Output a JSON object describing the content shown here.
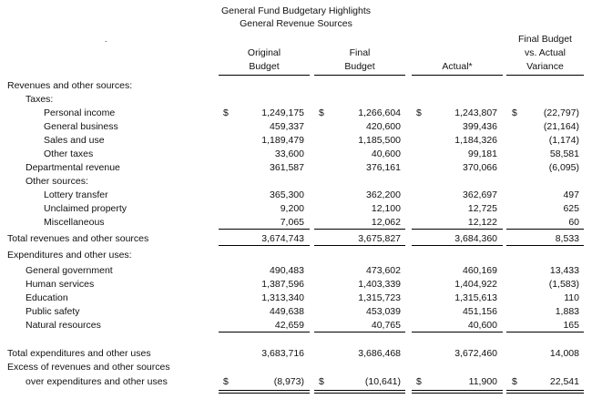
{
  "title": "General Fund Budgetary Highlights",
  "subtitle": "General Revenue Sources",
  "dot": ".",
  "headers": {
    "original": [
      "Original",
      "Budget"
    ],
    "final": [
      "Final",
      "Budget"
    ],
    "actual": [
      "Actual*"
    ],
    "variance": [
      "Final Budget",
      "vs. Actual",
      "Variance"
    ]
  },
  "rows": [
    {
      "label": "Revenues and other sources:",
      "indent": 0
    },
    {
      "label": "Taxes:",
      "indent": 1
    },
    {
      "label": "Personal income",
      "indent": 2,
      "dollar": true,
      "values": [
        "1,249,175",
        "1,266,604",
        "1,243,807",
        "(22,797)"
      ]
    },
    {
      "label": "General business",
      "indent": 2,
      "values": [
        "459,337",
        "420,600",
        "399,436",
        "(21,164)"
      ]
    },
    {
      "label": "Sales and use",
      "indent": 2,
      "values": [
        "1,189,479",
        "1,185,500",
        "1,184,326",
        "(1,174)"
      ]
    },
    {
      "label": "Other taxes",
      "indent": 2,
      "values": [
        "33,600",
        "40,600",
        "99,181",
        "58,581"
      ]
    },
    {
      "label": "Departmental revenue",
      "indent": 1,
      "values": [
        "361,587",
        "376,161",
        "370,066",
        "(6,095)"
      ]
    },
    {
      "label": "Other sources:",
      "indent": 1
    },
    {
      "label": "Lottery transfer",
      "indent": 2,
      "values": [
        "365,300",
        "362,200",
        "362,697",
        "497"
      ]
    },
    {
      "label": "Unclaimed property",
      "indent": 2,
      "values": [
        "9,200",
        "12,100",
        "12,725",
        "625"
      ]
    },
    {
      "label": "Miscellaneous",
      "indent": 2,
      "values": [
        "7,065",
        "12,062",
        "12,122",
        "60"
      ]
    },
    {
      "label": "Total revenues and other sources",
      "indent": 0,
      "values": [
        "3,674,743",
        "3,675,827",
        "3,684,360",
        "8,533"
      ]
    },
    {
      "label": "Expenditures and other uses:",
      "indent": 0
    },
    {
      "label": "General government",
      "indent": 1,
      "values": [
        "490,483",
        "473,602",
        "460,169",
        "13,433"
      ]
    },
    {
      "label": "Human services",
      "indent": 1,
      "values": [
        "1,387,596",
        "1,403,339",
        "1,404,922",
        "(1,583)"
      ]
    },
    {
      "label": "Education",
      "indent": 1,
      "values": [
        "1,313,340",
        "1,315,723",
        "1,315,613",
        "110"
      ]
    },
    {
      "label": "Public safety",
      "indent": 1,
      "values": [
        "449,638",
        "453,039",
        "451,156",
        "1,883"
      ]
    },
    {
      "label": "Natural resources",
      "indent": 1,
      "values": [
        "42,659",
        "40,765",
        "40,600",
        "165"
      ]
    },
    {
      "label": "Total expenditures and other uses",
      "indent": 0,
      "values": [
        "3,683,716",
        "3,686,468",
        "3,672,460",
        "14,008"
      ]
    },
    {
      "label": "Excess of revenues and other sources",
      "indent": 0
    },
    {
      "label": "over expenditures and other uses",
      "indent": 1,
      "dollar": true,
      "values": [
        "(8,973)",
        "(10,641)",
        "11,900",
        "22,541"
      ]
    }
  ]
}
